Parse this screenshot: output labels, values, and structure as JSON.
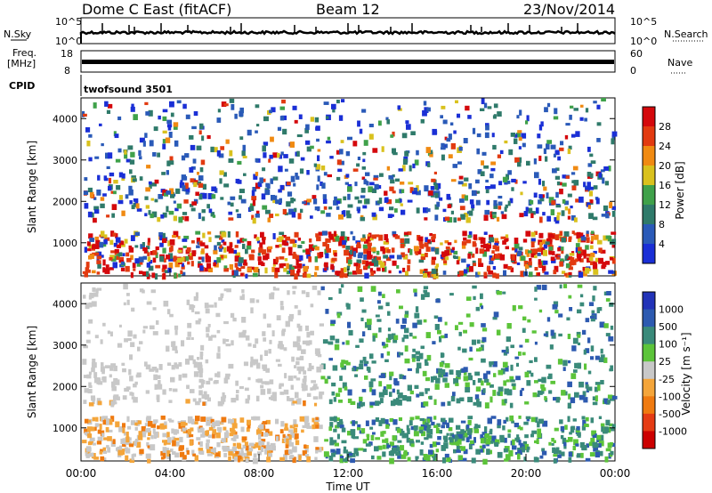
{
  "header": {
    "station": "Dome C East (fitACF)",
    "beam": "Beam 12",
    "date": "23/Nov/2014"
  },
  "sky_panel": {
    "left_label": "N.Sky",
    "left_ticks": [
      "10^5",
      "10^0"
    ],
    "right_label": "N.Search",
    "right_ticks": [
      "10^5",
      "10^0"
    ]
  },
  "freq_panel": {
    "left_label": "Freq.",
    "left_unit": "[MHz]",
    "left_ticks": [
      "18",
      "8"
    ],
    "right_label": "Nave",
    "right_ticks": [
      "60",
      "0"
    ]
  },
  "cpid": {
    "label": "CPID",
    "program": "twofsound 3501"
  },
  "chart_data": [
    {
      "type": "heatmap",
      "panel": "power",
      "ylabel": "Slant Range [km]",
      "yticks": [
        "1000",
        "2000",
        "3000",
        "4000"
      ],
      "ylim": [
        200,
        4500
      ],
      "colorbar_label": "Power [dB]",
      "colorbar_ticks": [
        "4",
        "8",
        "12",
        "16",
        "20",
        "24",
        "28"
      ],
      "colorbar_colors": [
        "#1a2fd6",
        "#2a5ab8",
        "#2f7a6a",
        "#3fa14a",
        "#d9c11d",
        "#f08a12",
        "#e23a10",
        "#d4080c"
      ],
      "grid": false
    },
    {
      "type": "heatmap",
      "panel": "velocity",
      "ylabel": "Slant Range [km]",
      "yticks": [
        "1000",
        "2000",
        "3000",
        "4000"
      ],
      "ylim": [
        200,
        4500
      ],
      "colorbar_label": "Velocity [m s⁻¹]",
      "colorbar_ticks": [
        "1000",
        "500",
        "100",
        "25",
        "-25",
        "-100",
        "-500",
        "-1000"
      ],
      "colorbar_colors": [
        "#2233b8",
        "#2d5ab0",
        "#3a8a7a",
        "#5cc43a",
        "#c8c8c8",
        "#f4a53a",
        "#ef7a10",
        "#e53c14",
        "#cc0000"
      ],
      "grid": false
    }
  ],
  "xaxis": {
    "label": "Time UT",
    "ticks": [
      "00:00",
      "04:00",
      "08:00",
      "12:00",
      "16:00",
      "20:00",
      "00:00"
    ]
  },
  "palette": {
    "power_scatter": [
      "#1a2fd6",
      "#2a5ab8",
      "#2f7a6a",
      "#3fa14a",
      "#d9c11d",
      "#f08a12",
      "#e23a10",
      "#d4080c"
    ],
    "velocity_scatter": [
      "#2d5ab0",
      "#3a8a7a",
      "#5cc43a",
      "#c8c8c8",
      "#f4a53a",
      "#ef7a10",
      "#e53c14"
    ]
  }
}
